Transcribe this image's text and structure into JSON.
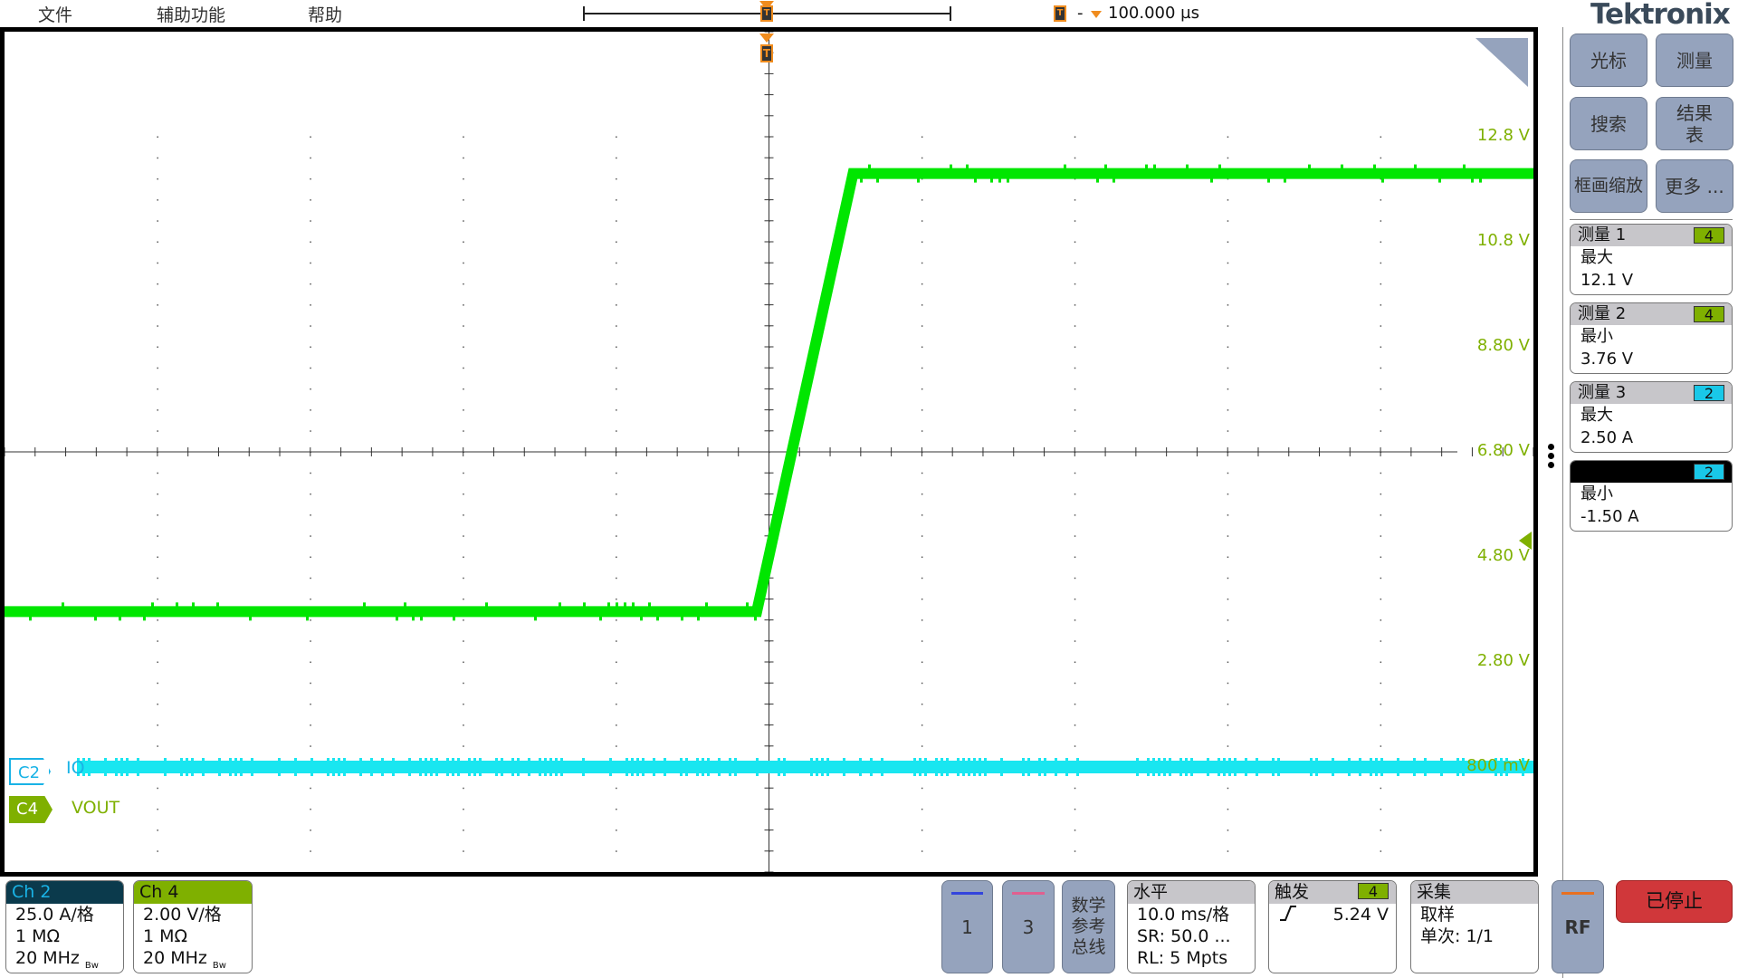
{
  "menu": [
    "文件",
    "辅助功能",
    "帮助"
  ],
  "trigger_marker": "T",
  "delay": "100.000 µs",
  "delay_sep": "-",
  "brand": {
    "a": "Tek",
    "b": "tronix"
  },
  "colors": {
    "ch2": "#19e6f0",
    "ch4": "#00e600",
    "ch4_label": "#7fb000",
    "ch2_label": "#19b3e6",
    "stop": "#d0373a"
  },
  "graticule": {
    "v_labels": [
      "12.8  V",
      "10.8  V",
      "8.80  V",
      "6.80  V",
      "4.80  V",
      "2.80  V",
      "800 mV"
    ]
  },
  "traces": {
    "ch4": {
      "unit": "V",
      "time_ms": [
        -50,
        -0.8,
        5.5,
        50
      ],
      "values": [
        3.76,
        3.76,
        12.1,
        12.1
      ]
    },
    "ch2": {
      "unit": "A",
      "level": 0
    }
  },
  "channel_labels": {
    "c2": "C2",
    "c2_name": "IO",
    "c4": "C4",
    "c4_name": "VOUT"
  },
  "side_buttons": [
    "光标",
    "测量",
    "搜索",
    "结果表",
    "框画缩放",
    "更多 ..."
  ],
  "measurements": [
    {
      "title": "测量 1",
      "source": "4",
      "type": "最大",
      "value": "12.1 V"
    },
    {
      "title": "测量 2",
      "source": "4",
      "type": "最小",
      "value": "3.76 V"
    },
    {
      "title": "测量 3",
      "source": "2",
      "type": "最大",
      "value": "2.50 A"
    },
    {
      "title": "",
      "source": "2",
      "type": "最小",
      "value": "-1.50 A"
    }
  ],
  "ch2": {
    "title": "Ch 2",
    "scale": "25.0 A/格",
    "imp": "1 MΩ",
    "bw": "20 MHz",
    "bw_icon": "Bw"
  },
  "ch4": {
    "title": "Ch 4",
    "scale": "2.00 V/格",
    "imp": "1 MΩ",
    "bw": "20 MHz",
    "bw_icon": "Bw"
  },
  "bottom_buttons": {
    "b1": "1",
    "b3": "3",
    "math": "数学\n参考\n总线",
    "rf": "RF",
    "stop": "已停止"
  },
  "horizontal": {
    "title": "水平",
    "scale": "10.0 ms/格",
    "sr": "SR: 50.0 ...",
    "rl": "RL: 5 Mpts"
  },
  "trigger": {
    "title": "触发",
    "source": "4",
    "slope_icon": "rising-edge",
    "level": "5.24 V"
  },
  "acquisition": {
    "title": "采集",
    "mode": "取样",
    "count": "单次: 1/1"
  }
}
